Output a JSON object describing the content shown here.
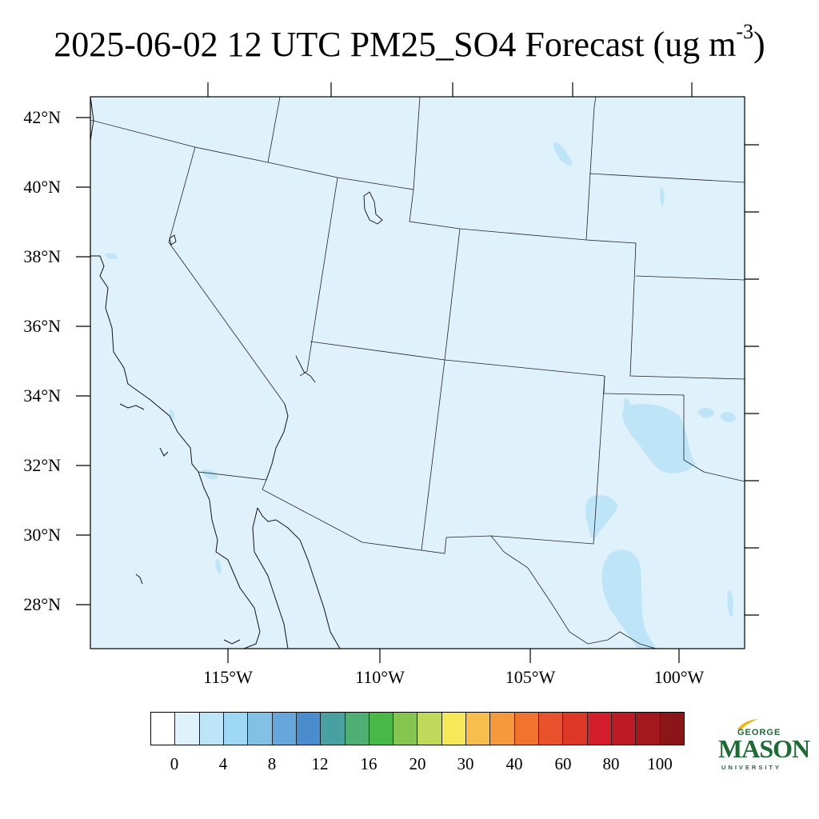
{
  "title": {
    "text": "2025-06-02 12 UTC PM25_SO4 Forecast (ug m",
    "superscript": "-3",
    "suffix": ")"
  },
  "map": {
    "region": "Southwestern United States and Northern Mexico",
    "background_fill": "#dff1fb",
    "enhanced_fill": "#bde5f7",
    "latitude_labels": [
      "42°N",
      "40°N",
      "38°N",
      "36°N",
      "34°N",
      "32°N",
      "30°N",
      "28°N"
    ],
    "longitude_labels": [
      "115°W",
      "110°W",
      "105°W",
      "100°W"
    ]
  },
  "legend": {
    "labels": [
      "0",
      "4",
      "8",
      "12",
      "16",
      "20",
      "30",
      "40",
      "60",
      "80",
      "100"
    ],
    "colors": [
      "#ffffff",
      "#dff1fb",
      "#bde5f7",
      "#9ed8f4",
      "#83c0e6",
      "#67a6dc",
      "#4a8ccd",
      "#48a0a0",
      "#4fae74",
      "#48b848",
      "#86c650",
      "#c0d95a",
      "#f7e85a",
      "#f7bd4d",
      "#f5993c",
      "#f2732d",
      "#e8522c",
      "#dd3728",
      "#d21f2b",
      "#bc1b25",
      "#a3171e",
      "#8b1519"
    ]
  },
  "logo": {
    "line1": "GEORGE",
    "line2": "MASON",
    "line3": "UNIVERSITY"
  }
}
